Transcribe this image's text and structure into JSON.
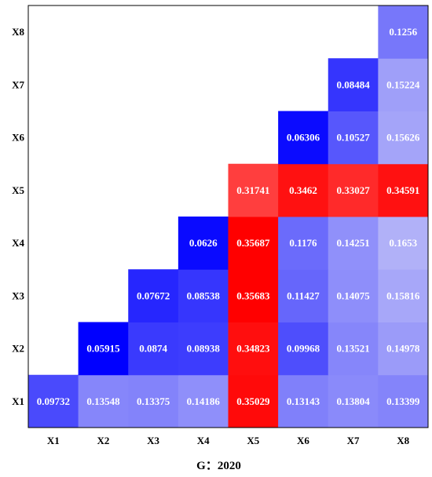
{
  "chart_data": {
    "type": "heatmap",
    "xlabel": "G：2020",
    "x_categories": [
      "X1",
      "X2",
      "X3",
      "X4",
      "X5",
      "X6",
      "X7",
      "X8"
    ],
    "y_categories": [
      "X1",
      "X2",
      "X3",
      "X4",
      "X5",
      "X6",
      "X7",
      "X8"
    ],
    "grid": false,
    "cells": [
      {
        "x": "X1",
        "y": "X1",
        "value": 0.09732,
        "label": "0.09732"
      },
      {
        "x": "X2",
        "y": "X1",
        "value": 0.13548,
        "label": "0.13548"
      },
      {
        "x": "X3",
        "y": "X1",
        "value": 0.13375,
        "label": "0.13375"
      },
      {
        "x": "X4",
        "y": "X1",
        "value": 0.14186,
        "label": "0.14186"
      },
      {
        "x": "X5",
        "y": "X1",
        "value": 0.35029,
        "label": "0.35029"
      },
      {
        "x": "X6",
        "y": "X1",
        "value": 0.13143,
        "label": "0.13143"
      },
      {
        "x": "X7",
        "y": "X1",
        "value": 0.13804,
        "label": "0.13804"
      },
      {
        "x": "X8",
        "y": "X1",
        "value": 0.13399,
        "label": "0.13399"
      },
      {
        "x": "X2",
        "y": "X2",
        "value": 0.05915,
        "label": "0.05915"
      },
      {
        "x": "X3",
        "y": "X2",
        "value": 0.0874,
        "label": "0.0874"
      },
      {
        "x": "X4",
        "y": "X2",
        "value": 0.08938,
        "label": "0.08938"
      },
      {
        "x": "X5",
        "y": "X2",
        "value": 0.34823,
        "label": "0.34823"
      },
      {
        "x": "X6",
        "y": "X2",
        "value": 0.09968,
        "label": "0.09968"
      },
      {
        "x": "X7",
        "y": "X2",
        "value": 0.13521,
        "label": "0.13521"
      },
      {
        "x": "X8",
        "y": "X2",
        "value": 0.14978,
        "label": "0.14978"
      },
      {
        "x": "X3",
        "y": "X3",
        "value": 0.07672,
        "label": "0.07672"
      },
      {
        "x": "X4",
        "y": "X3",
        "value": 0.08538,
        "label": "0.08538"
      },
      {
        "x": "X5",
        "y": "X3",
        "value": 0.35683,
        "label": "0.35683"
      },
      {
        "x": "X6",
        "y": "X3",
        "value": 0.11427,
        "label": "0.11427"
      },
      {
        "x": "X7",
        "y": "X3",
        "value": 0.14075,
        "label": "0.14075"
      },
      {
        "x": "X8",
        "y": "X3",
        "value": 0.15816,
        "label": "0.15816"
      },
      {
        "x": "X4",
        "y": "X4",
        "value": 0.0626,
        "label": "0.0626"
      },
      {
        "x": "X5",
        "y": "X4",
        "value": 0.35687,
        "label": "0.35687"
      },
      {
        "x": "X6",
        "y": "X4",
        "value": 0.1176,
        "label": "0.1176"
      },
      {
        "x": "X7",
        "y": "X4",
        "value": 0.14251,
        "label": "0.14251"
      },
      {
        "x": "X8",
        "y": "X4",
        "value": 0.1653,
        "label": "0.1653"
      },
      {
        "x": "X5",
        "y": "X5",
        "value": 0.31741,
        "label": "0.31741"
      },
      {
        "x": "X6",
        "y": "X5",
        "value": 0.3462,
        "label": "0.3462"
      },
      {
        "x": "X7",
        "y": "X5",
        "value": 0.33027,
        "label": "0.33027"
      },
      {
        "x": "X8",
        "y": "X5",
        "value": 0.34591,
        "label": "0.34591"
      },
      {
        "x": "X6",
        "y": "X6",
        "value": 0.06306,
        "label": "0.06306"
      },
      {
        "x": "X7",
        "y": "X6",
        "value": 0.10527,
        "label": "0.10527"
      },
      {
        "x": "X8",
        "y": "X6",
        "value": 0.15626,
        "label": "0.15626"
      },
      {
        "x": "X7",
        "y": "X7",
        "value": 0.08484,
        "label": "0.08484"
      },
      {
        "x": "X8",
        "y": "X7",
        "value": 0.15224,
        "label": "0.15224"
      },
      {
        "x": "X8",
        "y": "X8",
        "value": 0.1256,
        "label": "0.1256"
      }
    ],
    "colors": {
      "low": "#0000ff",
      "mid": "#b8b8f8",
      "high": "#ff0000",
      "text": "#ffffff",
      "background": "#ffffff",
      "frame": "#000000"
    }
  }
}
